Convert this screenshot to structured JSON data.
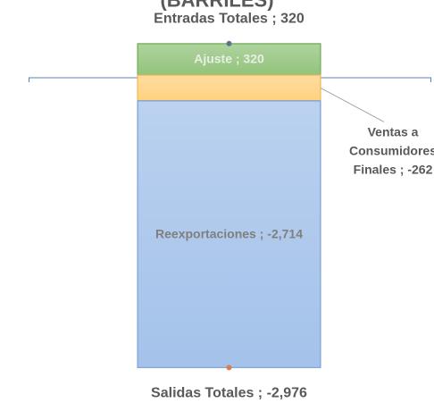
{
  "chart_data": {
    "type": "stacked-bar",
    "title": "(BARRILES)",
    "segments": [
      {
        "value": 320,
        "value_label": "Ajuste ; 320",
        "color": "#93c47d",
        "border": "#6aa84f",
        "label_color": "#e8eee4"
      },
      {
        "value": -262,
        "value_label": "Ventas a\nConsumidores\nFinales ; -262",
        "color": "#ffd27f",
        "border": "#f1b24a",
        "label_color": "#595959"
      },
      {
        "value": -2714,
        "value_label": "Reexportaciones ; -2,714",
        "color": "#a4c2ea",
        "border": "#6f9bd6",
        "label_color": "#7f7f7f"
      }
    ],
    "totals": [
      {
        "value": 320,
        "value_label": "Entradas Totales ;  320",
        "color": "#5a7394"
      },
      {
        "value": -2976,
        "value_label": "Salidas Totales ; -2,976",
        "color": "#e07b4f"
      }
    ]
  }
}
